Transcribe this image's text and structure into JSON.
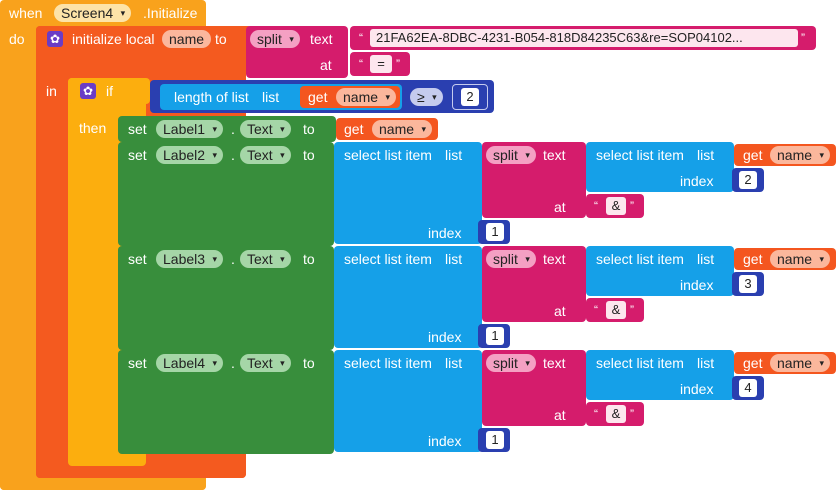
{
  "event": {
    "when_label": "when",
    "component": "Screen4",
    "event_name": ".Initialize",
    "do_label": "do"
  },
  "local": {
    "label": "initialize local",
    "var_name": "name",
    "to_label": "to",
    "in_label": "in"
  },
  "split_main": {
    "label": "split",
    "text_label": "text",
    "text_value": "21FA62EA-8DBC-4231-B054-818D84235C63&re=SOP04102...",
    "at_label": "at",
    "at_value": "="
  },
  "if_block": {
    "if_label": "if",
    "then_label": "then",
    "length_label": "length of list",
    "list_label": "list",
    "get_label": "get",
    "get_var": "name",
    "compare_op": "≥",
    "compare_value": "2"
  },
  "set1": {
    "set_label": "set",
    "component": "Label1",
    "dot": ".",
    "property": "Text",
    "to_label": "to",
    "get_label": "get",
    "get_var": "name"
  },
  "sets": [
    {
      "set_label": "set",
      "component": "Label2",
      "dot": ".",
      "property": "Text",
      "to_label": "to",
      "select_label": "select list item",
      "list_label": "list",
      "split_label": "split",
      "text_label": "text",
      "inner_select_label": "select list item",
      "inner_list_label": "list",
      "get_label": "get",
      "get_var": "name",
      "inner_index_label": "index",
      "inner_index": "2",
      "at_label": "at",
      "at_value": "&",
      "outer_index_label": "index",
      "outer_index": "1"
    },
    {
      "set_label": "set",
      "component": "Label3",
      "dot": ".",
      "property": "Text",
      "to_label": "to",
      "select_label": "select list item",
      "list_label": "list",
      "split_label": "split",
      "text_label": "text",
      "inner_select_label": "select list item",
      "inner_list_label": "list",
      "get_label": "get",
      "get_var": "name",
      "inner_index_label": "index",
      "inner_index": "3",
      "at_label": "at",
      "at_value": "&",
      "outer_index_label": "index",
      "outer_index": "1"
    },
    {
      "set_label": "set",
      "component": "Label4",
      "dot": ".",
      "property": "Text",
      "to_label": "to",
      "select_label": "select list item",
      "list_label": "list",
      "split_label": "split",
      "text_label": "text",
      "inner_select_label": "select list item",
      "inner_list_label": "list",
      "get_label": "get",
      "get_var": "name",
      "inner_index_label": "index",
      "inner_index": "4",
      "at_label": "at",
      "at_value": "&",
      "outer_index_label": "index",
      "outer_index": "1"
    }
  ],
  "glyphs": {
    "gear": "✿",
    "dropdown": "▾",
    "open_quote": "“",
    "close_quote": "”",
    "paren": "("
  },
  "colors": {
    "event": "#f9a21c",
    "local_variable": "#f45a1f",
    "control": "#fcae0e",
    "setter": "#388e3c",
    "lists": "#15a0e8",
    "text": "#d51c6c",
    "math": "#2a3fb0"
  }
}
